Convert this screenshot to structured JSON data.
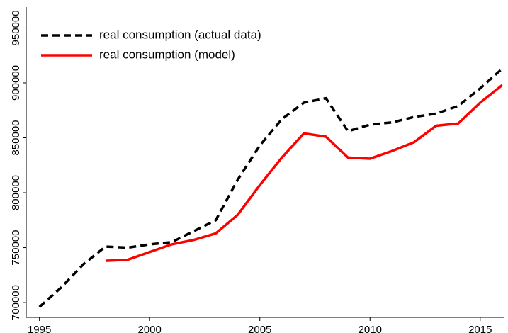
{
  "chart_data": {
    "type": "line",
    "x": [
      1995,
      1996,
      1997,
      1998,
      1999,
      2000,
      2001,
      2002,
      2003,
      2004,
      2005,
      2006,
      2007,
      2008,
      2009,
      2010,
      2011,
      2012,
      2013,
      2014,
      2015,
      2016
    ],
    "series": [
      {
        "name": "real consumption (actual data)",
        "color": "#000000",
        "dash": true,
        "values": [
          696000,
          714000,
          735000,
          751000,
          750000,
          753000,
          755000,
          765000,
          775000,
          812000,
          843000,
          867000,
          882000,
          886000,
          856000,
          862000,
          864000,
          869000,
          872000,
          879000,
          895000,
          913000
        ]
      },
      {
        "name": "real consumption (model)",
        "color": "#ff0000",
        "dash": false,
        "values": [
          null,
          null,
          null,
          738000,
          739000,
          746000,
          753000,
          757000,
          763000,
          780000,
          807000,
          832000,
          854000,
          851000,
          832000,
          831000,
          838000,
          846000,
          861000,
          863000,
          882000,
          898000
        ]
      }
    ],
    "xlim": [
      1994.4,
      2016.1
    ],
    "ylim": [
      686500,
      969000
    ],
    "xticks": [
      1995,
      2000,
      2005,
      2010,
      2015
    ],
    "yticks": [
      700000,
      750000,
      800000,
      850000,
      900000,
      950000
    ],
    "legend": "upper left",
    "grid": false
  }
}
